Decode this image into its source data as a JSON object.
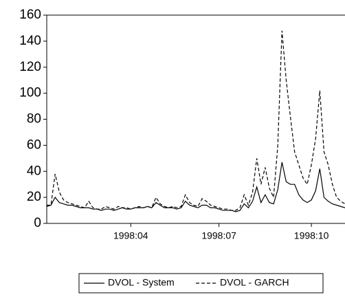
{
  "chart_data": {
    "type": "line",
    "categories": [
      null,
      null,
      null,
      null,
      null,
      null,
      null,
      null,
      null,
      null,
      null,
      null,
      null,
      null,
      null,
      null,
      null,
      null,
      null,
      null,
      "1998:04",
      null,
      null,
      null,
      null,
      null,
      null,
      null,
      null,
      null,
      null,
      null,
      null,
      null,
      null,
      null,
      null,
      null,
      null,
      null,
      null,
      "1998:07",
      null,
      null,
      null,
      null,
      null,
      null,
      null,
      null,
      null,
      null,
      null,
      null,
      null,
      null,
      null,
      null,
      null,
      null,
      null,
      null,
      null,
      "1998:10",
      null,
      null,
      null,
      null,
      null,
      null,
      null,
      null
    ],
    "series": [
      {
        "name": "DVOL - System",
        "color": "#000000",
        "style": "solid",
        "values": [
          13,
          14,
          20,
          16,
          15,
          14,
          14,
          13,
          12,
          12,
          12,
          11,
          11,
          10,
          11,
          11,
          10,
          11,
          12,
          11,
          11,
          12,
          12,
          12,
          13,
          12,
          16,
          14,
          12,
          12,
          12,
          11,
          12,
          17,
          14,
          13,
          12,
          14,
          14,
          12,
          12,
          11,
          10,
          10,
          10,
          9,
          10,
          15,
          12,
          17,
          28,
          16,
          22,
          16,
          15,
          26,
          47,
          32,
          30,
          30,
          22,
          18,
          16,
          18,
          25,
          42,
          20,
          17,
          15,
          14,
          13,
          12
        ]
      },
      {
        "name": "DVOL - GARCH",
        "color": "#000000",
        "style": "dashed",
        "values": [
          14,
          14,
          38,
          24,
          18,
          16,
          15,
          14,
          13,
          12,
          17,
          12,
          11,
          11,
          13,
          12,
          11,
          13,
          12,
          12,
          11,
          12,
          13,
          12,
          13,
          12,
          20,
          15,
          13,
          12,
          13,
          12,
          13,
          22,
          16,
          14,
          13,
          19,
          17,
          14,
          13,
          12,
          11,
          11,
          10,
          10,
          12,
          22,
          14,
          24,
          50,
          30,
          43,
          27,
          20,
          60,
          148,
          110,
          82,
          55,
          45,
          35,
          30,
          45,
          65,
          102,
          55,
          45,
          30,
          20,
          17,
          15
        ]
      }
    ],
    "ylim": [
      0,
      160
    ],
    "yticks": [
      0,
      20,
      40,
      60,
      80,
      100,
      120,
      140,
      160
    ]
  }
}
